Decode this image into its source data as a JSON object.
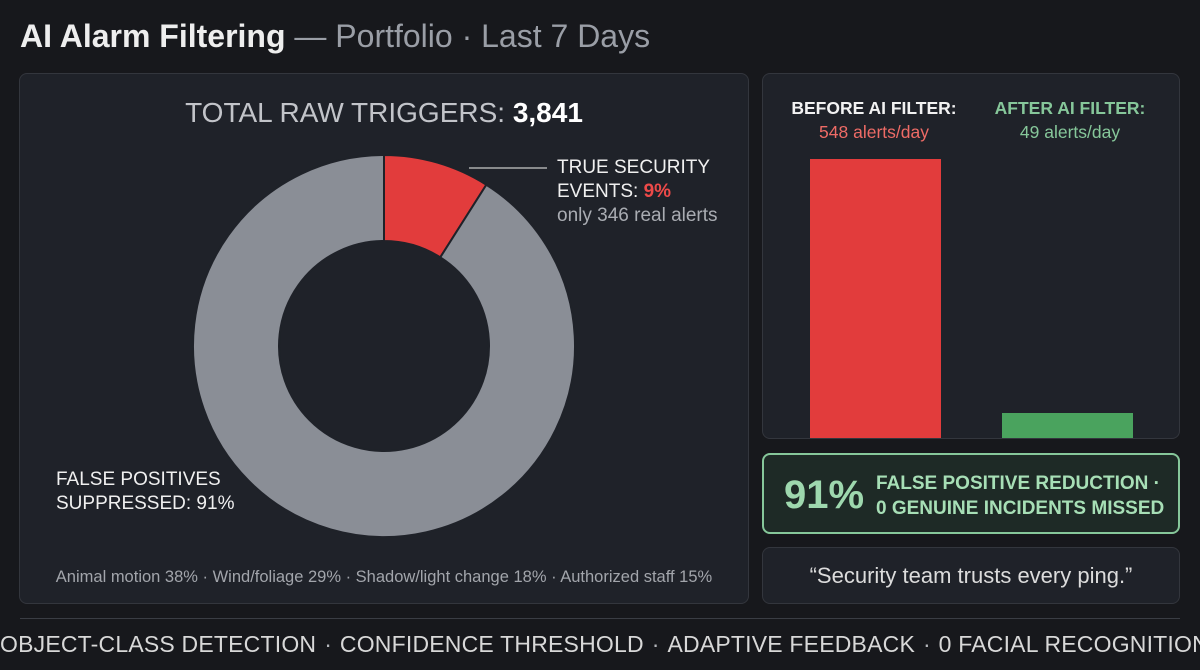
{
  "header": {
    "title": "AI Alarm Filtering",
    "separator": "—",
    "subtitle": "Portfolio · Last 7 Days"
  },
  "donut_panel": {
    "total_label": "TOTAL RAW TRIGGERS:",
    "total_value": "3,841",
    "true_events": {
      "line1": "TRUE SECURITY",
      "line2_label": "EVENTS:",
      "line2_value": "9%",
      "sub": "only 346 real alerts"
    },
    "false_positives": {
      "line1": "FALSE POSITIVES",
      "line2": "SUPPRESSED: 91%"
    },
    "breakdown": "Animal motion 38% · Wind/foliage 29% · Shadow/light change 18% · Authorized staff 15%"
  },
  "bar_panel": {
    "before": {
      "label": "BEFORE AI FILTER:",
      "value_text": "548 alerts/day"
    },
    "after": {
      "label": "AFTER AI FILTER:",
      "value_text": "49 alerts/day"
    }
  },
  "reduction": {
    "pct": "91%",
    "line1": "FALSE POSITIVE REDUCTION ·",
    "line2": "0 GENUINE INCIDENTS MISSED"
  },
  "quote": "“Security team trusts every ping.”",
  "footer": {
    "items": [
      "OBJECT-CLASS DETECTION",
      "CONFIDENCE THRESHOLD",
      "ADAPTIVE FEEDBACK",
      "0 FACIAL RECOGNITION"
    ],
    "separator": "·"
  },
  "colors": {
    "true_events": "#e23c3c",
    "false_positives": "#8a8e96",
    "after_filter": "#4aa35e",
    "accent_green": "#86c79a"
  },
  "chart_data": [
    {
      "type": "pie",
      "title": "TOTAL RAW TRIGGERS: 3,841",
      "categories": [
        "TRUE SECURITY EVENTS",
        "FALSE POSITIVES SUPPRESSED"
      ],
      "values": [
        9,
        91
      ],
      "colors": [
        "#e23c3c",
        "#8a8e96"
      ]
    },
    {
      "type": "bar",
      "categories": [
        "BEFORE AI FILTER",
        "AFTER AI FILTER"
      ],
      "values": [
        548,
        49
      ],
      "ylim": [
        0,
        548
      ],
      "colors": [
        "#e23c3c",
        "#4aa35e"
      ]
    }
  ]
}
